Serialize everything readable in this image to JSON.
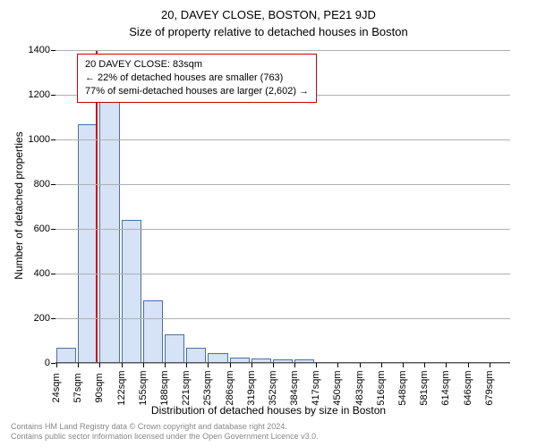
{
  "title": "20, DAVEY CLOSE, BOSTON, PE21 9JD",
  "subtitle": "Size of property relative to detached houses in Boston",
  "y_label": "Number of detached properties",
  "x_label": "Distribution of detached houses by size in Boston",
  "footer_line1": "Contains HM Land Registry data © Crown copyright and database right 2024.",
  "footer_line2": "Contains public sector information licensed under the Open Government Licence v3.0.",
  "info_box": {
    "line1": "20 DAVEY CLOSE: 83sqm",
    "line2": "← 22% of detached houses are smaller (763)",
    "line3": "77% of semi-detached houses are larger (2,602) →"
  },
  "chart": {
    "type": "histogram",
    "background_color": "#ffffff",
    "grid_color": "#b0b0b0",
    "bar_fill": "#d6e2f5",
    "bar_stroke": "#4a6fa5",
    "marker_color": "#cc0000",
    "ylim": [
      0,
      1400
    ],
    "ytick_step": 200,
    "yticks": [
      0,
      200,
      400,
      600,
      800,
      1000,
      1200,
      1400
    ],
    "x_first_center": 24,
    "x_last_center": 679,
    "bin_width_sqm": 32.75,
    "xticks": [
      24,
      57,
      90,
      122,
      155,
      188,
      221,
      253,
      286,
      319,
      352,
      384,
      417,
      450,
      483,
      516,
      548,
      581,
      614,
      646,
      679
    ],
    "xtick_suffix": "sqm",
    "marker_value": 83,
    "bars": [
      {
        "center": 24,
        "count": 70
      },
      {
        "center": 57,
        "count": 1070
      },
      {
        "center": 90,
        "count": 1190
      },
      {
        "center": 122,
        "count": 640
      },
      {
        "center": 155,
        "count": 280
      },
      {
        "center": 188,
        "count": 130
      },
      {
        "center": 221,
        "count": 70
      },
      {
        "center": 253,
        "count": 45
      },
      {
        "center": 286,
        "count": 25
      },
      {
        "center": 319,
        "count": 22
      },
      {
        "center": 352,
        "count": 18
      },
      {
        "center": 384,
        "count": 15
      },
      {
        "center": 417,
        "count": 0
      },
      {
        "center": 450,
        "count": 0
      },
      {
        "center": 483,
        "count": 0
      },
      {
        "center": 516,
        "count": 0
      },
      {
        "center": 548,
        "count": 0
      },
      {
        "center": 581,
        "count": 0
      },
      {
        "center": 614,
        "count": 0
      },
      {
        "center": 646,
        "count": 0
      },
      {
        "center": 679,
        "count": 0
      }
    ]
  }
}
